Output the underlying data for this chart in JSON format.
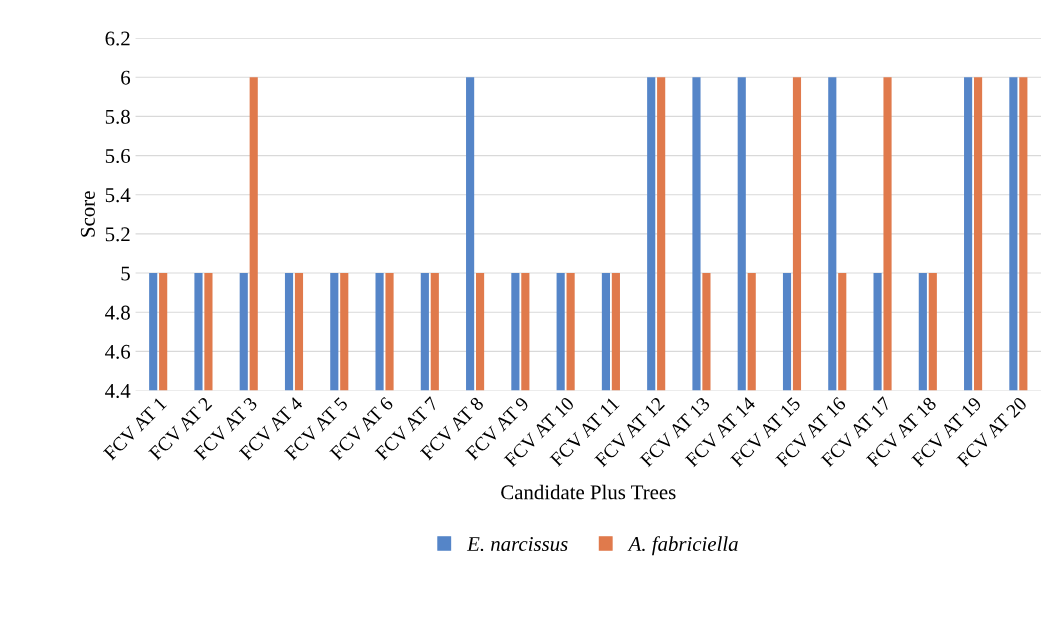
{
  "chart_data": {
    "type": "bar",
    "xlabel": "Candidate Plus Trees",
    "ylabel": "Score",
    "categories": [
      "FCV AT 1",
      "FCV AT 2",
      "FCV AT 3",
      "FCV AT 4",
      "FCV AT 5",
      "FCV AT 6",
      "FCV AT 7",
      "FCV AT 8",
      "FCV AT 9",
      "FCV AT 10",
      "FCV AT 11",
      "FCV AT 12",
      "FCV AT 13",
      "FCV AT 14",
      "FCV AT 15",
      "FCV AT 16",
      "FCV AT 17",
      "FCV AT 18",
      "FCV AT 19",
      "FCV AT 20"
    ],
    "series": [
      {
        "name": "E. narcissus",
        "color": "#5585c8",
        "values": [
          5,
          5,
          5,
          5,
          5,
          5,
          5,
          6,
          5,
          5,
          5,
          6,
          6,
          6,
          5,
          6,
          5,
          5,
          6,
          6
        ]
      },
      {
        "name": "A. fabriciella",
        "color": "#e07a4c",
        "values": [
          5,
          5,
          6,
          5,
          5,
          5,
          5,
          5,
          5,
          5,
          5,
          6,
          5,
          5,
          6,
          5,
          6,
          5,
          6,
          6
        ]
      }
    ],
    "ylim": [
      4.4,
      6.2
    ],
    "yticks": [
      4.4,
      4.6,
      4.8,
      5,
      5.2,
      5.4,
      5.6,
      5.8,
      6,
      6.2
    ],
    "grid": "y",
    "legend": "bottom"
  }
}
